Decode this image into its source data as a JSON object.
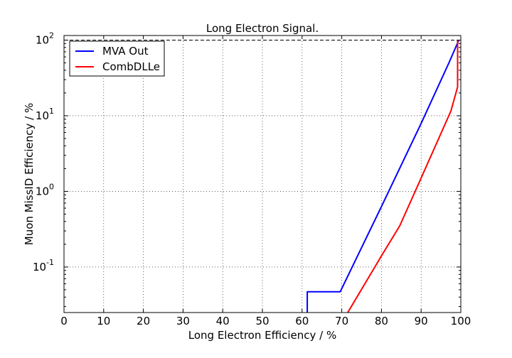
{
  "chart_data": {
    "type": "line",
    "title": "Long Electron Signal.",
    "xlabel": "Long Electron Efficiency / %",
    "ylabel": "Muon MissID Efficiency / %",
    "xlim": [
      0,
      100
    ],
    "ylim": [
      0.025,
      115
    ],
    "yscale": "log",
    "grid": true,
    "legend_position": "top-left",
    "x_ticks": [
      "0",
      "10",
      "20",
      "30",
      "40",
      "50",
      "60",
      "70",
      "80",
      "90",
      "100"
    ],
    "y_ticks": [
      {
        "value": 0.1,
        "base": "10",
        "exp": "-1"
      },
      {
        "value": 1,
        "base": "10",
        "exp": "0"
      },
      {
        "value": 10,
        "base": "10",
        "exp": "1"
      },
      {
        "value": 100,
        "base": "10",
        "exp": "2"
      }
    ],
    "series": [
      {
        "name": "MVA Out",
        "color": "#0000ff",
        "points": [
          [
            61.3,
            0.025
          ],
          [
            61.3,
            0.047
          ],
          [
            69.6,
            0.047
          ],
          [
            80,
            0.63
          ],
          [
            90,
            7.9
          ],
          [
            97,
            50
          ],
          [
            99.5,
            100
          ]
        ]
      },
      {
        "name": "CombDLLe",
        "color": "#ff0000",
        "points": [
          [
            71.5,
            0.025
          ],
          [
            80,
            0.14
          ],
          [
            84.6,
            0.35
          ],
          [
            90,
            1.5
          ],
          [
            97.5,
            11.5
          ],
          [
            99.2,
            24
          ],
          [
            99.2,
            100
          ]
        ]
      }
    ],
    "hline": {
      "value": 100,
      "style": "dashed",
      "color": "#000000"
    }
  }
}
